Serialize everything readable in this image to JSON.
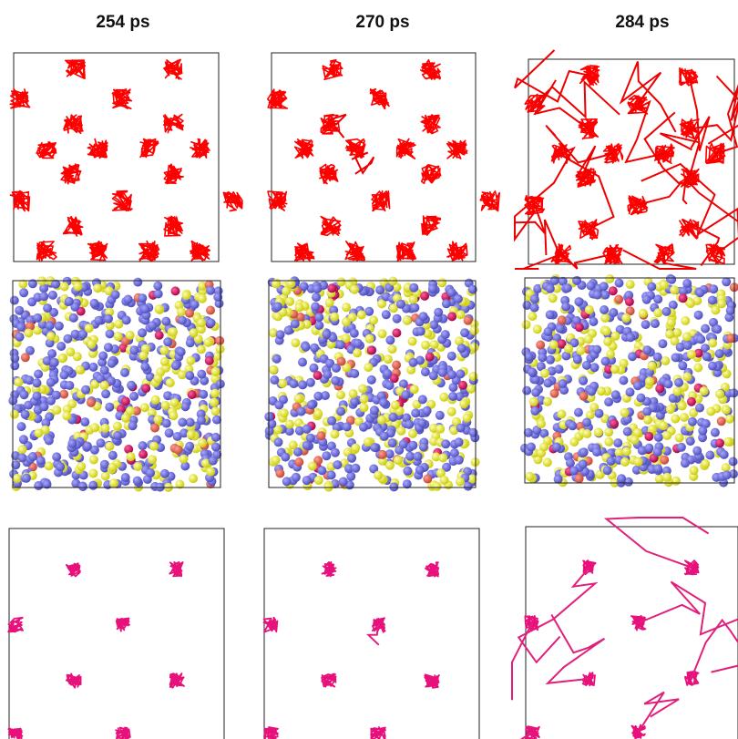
{
  "panels": {
    "columns": [
      {
        "title": "254 ps"
      },
      {
        "title": "270 ps"
      },
      {
        "title": "284 ps"
      }
    ]
  }
}
